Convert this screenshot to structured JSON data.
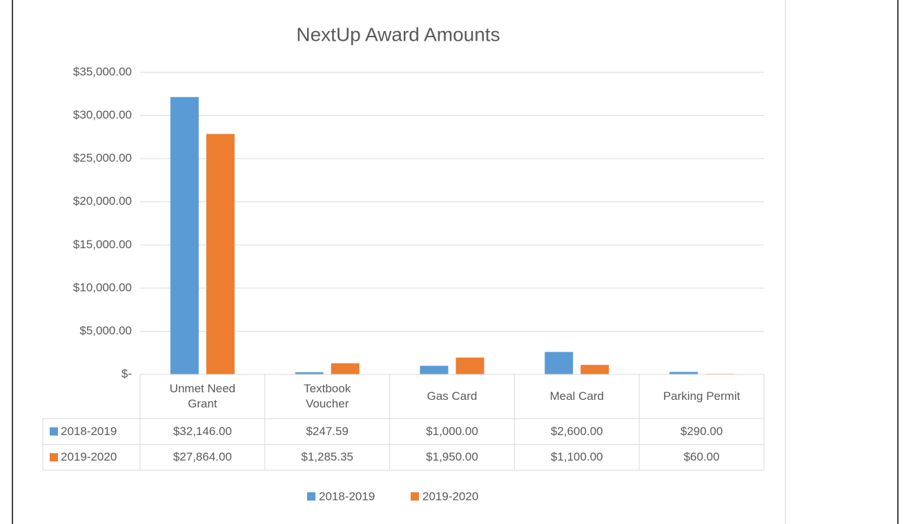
{
  "chart_data": {
    "type": "bar",
    "title": "NextUp Award Amounts",
    "categories": [
      "Unmet Need Grant",
      "Textbook Voucher",
      "Gas Card",
      "Meal Card",
      "Parking Permit"
    ],
    "series": [
      {
        "name": "2018-2019",
        "color": "#5b9bd5",
        "values": [
          32146,
          247.59,
          1000,
          2600,
          290
        ],
        "value_labels": [
          "$32,146.00",
          "$247.59",
          "$1,000.00",
          "$2,600.00",
          "$290.00"
        ]
      },
      {
        "name": "2019-2020",
        "color": "#ed7d31",
        "values": [
          27864,
          1285.35,
          1950,
          1100,
          60
        ],
        "value_labels": [
          "$27,864.00",
          "$1,285.35",
          "$1,950.00",
          "$1,100.00",
          "$60.00"
        ]
      }
    ],
    "ylim": [
      0,
      35000
    ],
    "yticks": [
      {
        "value": 0,
        "label": "$-"
      },
      {
        "value": 5000,
        "label": "$5,000.00"
      },
      {
        "value": 10000,
        "label": "$10,000.00"
      },
      {
        "value": 15000,
        "label": "$15,000.00"
      },
      {
        "value": 20000,
        "label": "$20,000.00"
      },
      {
        "value": 25000,
        "label": "$25,000.00"
      },
      {
        "value": 30000,
        "label": "$30,000.00"
      },
      {
        "value": 35000,
        "label": "$35,000.00"
      }
    ],
    "grid": true,
    "legend": "bottom"
  }
}
